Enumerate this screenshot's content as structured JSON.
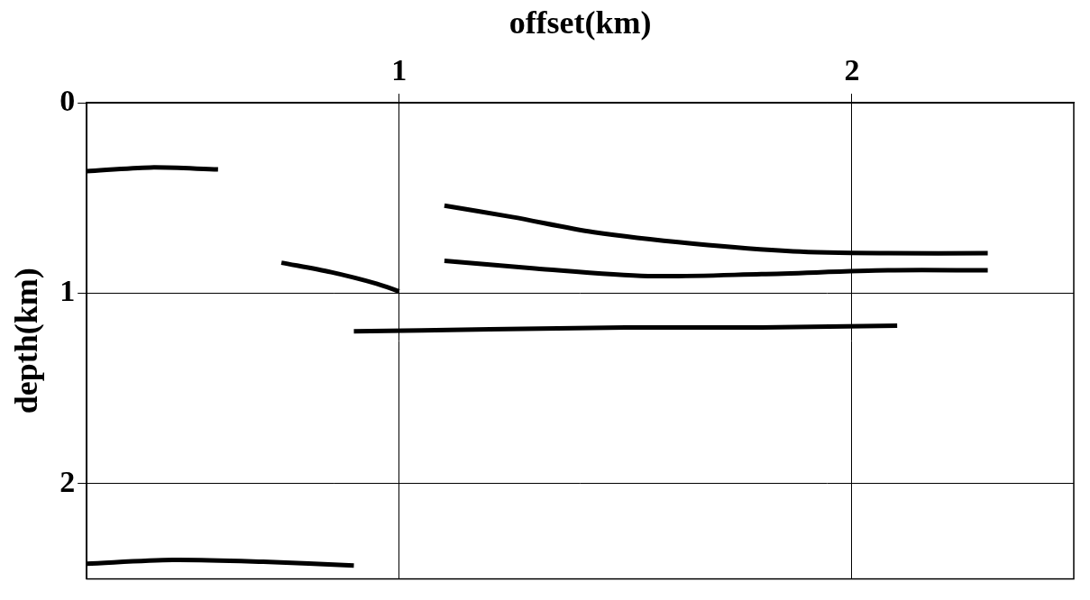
{
  "chart_data": {
    "type": "line",
    "x_label": "offset(km)",
    "y_label": "depth(km)",
    "xlim": [
      0.31,
      2.49
    ],
    "xticks": [
      1,
      2
    ],
    "ylim": [
      0,
      2.5
    ],
    "yticks": [
      0,
      1,
      2
    ],
    "grid": true,
    "series": [
      {
        "color": "#000000",
        "x": [
          0.31,
          0.45,
          0.6
        ],
        "values": [
          0.36,
          0.34,
          0.35
        ]
      },
      {
        "color": "#000000",
        "x": [
          1.1,
          1.25,
          1.43,
          1.65,
          1.87,
          2.08,
          2.3
        ],
        "values": [
          0.54,
          0.6,
          0.68,
          0.74,
          0.78,
          0.79,
          0.79
        ]
      },
      {
        "color": "#000000",
        "x": [
          0.74,
          0.85,
          0.95,
          1.0
        ],
        "values": [
          0.84,
          0.89,
          0.95,
          0.99
        ]
      },
      {
        "color": "#000000",
        "x": [
          1.1,
          1.3,
          1.55,
          1.8,
          2.08,
          2.3
        ],
        "values": [
          0.83,
          0.87,
          0.91,
          0.9,
          0.88,
          0.88
        ]
      },
      {
        "color": "#000000",
        "x": [
          0.9,
          1.2,
          1.5,
          1.8,
          2.1
        ],
        "values": [
          1.2,
          1.19,
          1.18,
          1.18,
          1.17
        ]
      },
      {
        "color": "#000000",
        "x": [
          0.31,
          0.5,
          0.7,
          0.9
        ],
        "values": [
          2.42,
          2.4,
          2.41,
          2.43
        ]
      }
    ]
  }
}
